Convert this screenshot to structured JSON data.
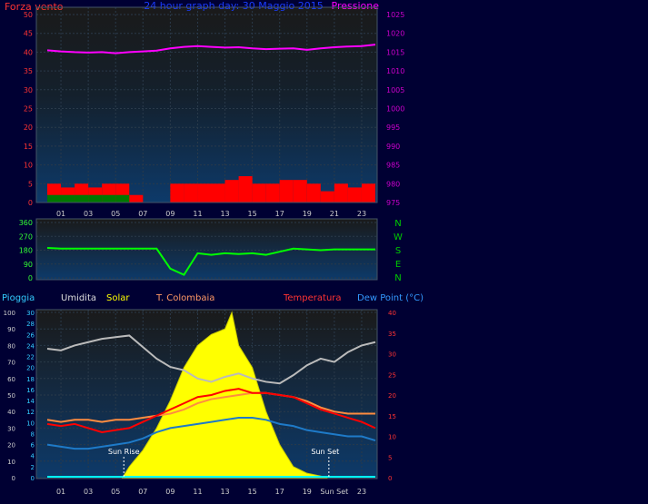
{
  "header": {
    "left_title": "Forza vento",
    "center_title": "24 hour graph day: 30 Maggio 2015",
    "right_title": "Pressione"
  },
  "legend_bottom": {
    "pioggia": "Pioggia",
    "umidita": "Umidita",
    "solar": "Solar",
    "station": "T. Colombaia",
    "temperatura": "Temperatura",
    "dewpoint": "Dew Point (°C)"
  },
  "annotations": {
    "sun_rise": "Sun Rise",
    "sun_set": "Sun Set",
    "sun_set_tick": "Sun Set"
  },
  "colors": {
    "background": "#000033",
    "plot_top": "#1a1a1a",
    "plot_bottom": "#0d3a6a",
    "wind": "#ff0000",
    "wind_avg": "#007700",
    "wind_line": "#ffffff",
    "pressure": "#ff00ff",
    "direction": "#00ff00",
    "solar": "#ffff00",
    "temperature": "#ff0000",
    "t_colombaia": "#ff8c40",
    "dewpoint": "#1e7ac8",
    "humidity": "#bbbbbb",
    "rain": "#00ffff",
    "compass": "#00cc00"
  },
  "chart_data": [
    {
      "type": "line",
      "name": "wind-pressure",
      "x_ticks": [
        "01",
        "03",
        "05",
        "07",
        "09",
        "11",
        "13",
        "15",
        "17",
        "19",
        "21",
        "23"
      ],
      "left_axis": {
        "ticks": [
          0,
          5,
          10,
          15,
          20,
          25,
          30,
          35,
          40,
          45,
          50
        ],
        "ylim": [
          0,
          50
        ]
      },
      "right_axis": {
        "ticks": [
          975,
          980,
          985,
          990,
          995,
          1000,
          1005,
          1010,
          1015,
          1020,
          1025
        ],
        "ylim": [
          975,
          1025
        ]
      },
      "series": [
        {
          "name": "Forza vento",
          "axis": "left",
          "style": "bars",
          "x": [
            0,
            1,
            2,
            3,
            4,
            5,
            6,
            7,
            8,
            9,
            10,
            11,
            12,
            13,
            14,
            15,
            16,
            17,
            18,
            19,
            20,
            21,
            22,
            23,
            24
          ],
          "values": [
            5,
            4,
            5,
            4,
            5,
            5,
            2,
            0,
            0,
            5,
            5,
            5,
            5,
            6,
            7,
            5,
            5,
            6,
            6,
            5,
            3,
            5,
            4,
            5,
            5
          ]
        },
        {
          "name": "Pressione",
          "axis": "right",
          "style": "line",
          "x": [
            0,
            1,
            2,
            3,
            4,
            5,
            6,
            7,
            8,
            9,
            10,
            11,
            12,
            13,
            14,
            15,
            16,
            17,
            18,
            19,
            20,
            21,
            22,
            23,
            24
          ],
          "values": [
            1015.5,
            1015.2,
            1015,
            1014.9,
            1015,
            1014.7,
            1015,
            1015.2,
            1015.4,
            1016,
            1016.4,
            1016.6,
            1016.4,
            1016.2,
            1016.3,
            1016,
            1015.8,
            1015.9,
            1016,
            1015.6,
            1016,
            1016.3,
            1016.5,
            1016.6,
            1017
          ]
        }
      ]
    },
    {
      "type": "line",
      "name": "wind-direction",
      "left_axis": {
        "ticks": [
          0,
          90,
          180,
          270,
          360
        ],
        "ylim": [
          0,
          360
        ]
      },
      "compass_labels": [
        "N",
        "W",
        "S",
        "E",
        "N"
      ],
      "series": [
        {
          "name": "Direzione",
          "x": [
            0,
            1,
            2,
            3,
            4,
            5,
            6,
            7,
            8,
            9,
            10,
            11,
            12,
            13,
            14,
            15,
            16,
            17,
            18,
            19,
            20,
            21,
            22,
            23,
            24
          ],
          "values": [
            195,
            190,
            190,
            190,
            190,
            190,
            190,
            190,
            190,
            60,
            20,
            160,
            150,
            160,
            155,
            160,
            150,
            170,
            190,
            185,
            180,
            185,
            185,
            185,
            185
          ]
        }
      ]
    },
    {
      "type": "area",
      "name": "solar-temp-humidity",
      "x_ticks": [
        "01",
        "03",
        "05",
        "07",
        "09",
        "11",
        "13",
        "15",
        "17",
        "19",
        "Sun Set",
        "23"
      ],
      "axis_pioggia": {
        "ticks": [
          0,
          10,
          20,
          30,
          40,
          50,
          60,
          70,
          80,
          90,
          100
        ],
        "ylim": [
          0,
          100
        ]
      },
      "axis_umidita": {
        "ticks": [
          0,
          2,
          4,
          6,
          8,
          10,
          12,
          14,
          16,
          18,
          20,
          22,
          24,
          26,
          28,
          30
        ],
        "ylim": [
          0,
          30
        ]
      },
      "axis_temp": {
        "ticks": [
          0,
          5,
          10,
          15,
          20,
          25,
          30,
          35,
          40
        ],
        "ylim": [
          0,
          40
        ]
      },
      "series": [
        {
          "name": "Solar",
          "axis": "umidita",
          "x": [
            5.5,
            6,
            7,
            8,
            9,
            10,
            11,
            12,
            13,
            13.5,
            14,
            15,
            16,
            17,
            18,
            19,
            20,
            20.5
          ],
          "values": [
            0,
            2,
            5,
            9,
            14,
            20,
            24,
            26,
            27,
            30,
            24,
            20,
            12,
            6,
            2,
            0.8,
            0.3,
            0
          ]
        },
        {
          "name": "Umidita",
          "axis": "pioggia",
          "x": [
            0,
            1,
            2,
            3,
            4,
            5,
            6,
            7,
            8,
            9,
            10,
            11,
            12,
            13,
            14,
            15,
            16,
            17,
            18,
            19,
            20,
            21,
            22,
            23,
            24
          ],
          "values": [
            78,
            77,
            80,
            82,
            84,
            85,
            86,
            79,
            72,
            67,
            65,
            60,
            58,
            61,
            63,
            60,
            58,
            57,
            62,
            68,
            72,
            70,
            76,
            80,
            82
          ]
        },
        {
          "name": "Temperatura",
          "axis": "temp",
          "x": [
            0,
            1,
            2,
            3,
            4,
            5,
            6,
            7,
            8,
            9,
            10,
            11,
            12,
            13,
            14,
            15,
            16,
            17,
            18,
            19,
            20,
            21,
            22,
            23,
            24
          ],
          "values": [
            13,
            12.5,
            13,
            12,
            11,
            11.5,
            12,
            13.5,
            15,
            16.5,
            18,
            19.5,
            20,
            21,
            21.5,
            20.5,
            20.5,
            20,
            19.5,
            18,
            16.5,
            15.5,
            14.5,
            13.5,
            12
          ]
        },
        {
          "name": "T. Colombaia",
          "axis": "temp",
          "x": [
            0,
            1,
            2,
            3,
            4,
            5,
            6,
            7,
            8,
            9,
            10,
            11,
            12,
            13,
            14,
            15,
            16,
            17,
            18,
            19,
            20,
            21,
            22,
            23,
            24
          ],
          "values": [
            14,
            13.5,
            14,
            14,
            13.5,
            14,
            14,
            14.5,
            15,
            15.5,
            16.5,
            18,
            19,
            19.5,
            20,
            20.5,
            20.5,
            20,
            19.5,
            18.5,
            17,
            16,
            15.5,
            15.5,
            15.5
          ]
        },
        {
          "name": "Dew Point",
          "axis": "temp",
          "x": [
            0,
            1,
            2,
            3,
            4,
            5,
            6,
            7,
            8,
            9,
            10,
            11,
            12,
            13,
            14,
            15,
            16,
            17,
            18,
            19,
            20,
            21,
            22,
            23,
            24
          ],
          "values": [
            8,
            7.5,
            7,
            7,
            7.5,
            8,
            8.5,
            9.5,
            11,
            12,
            12.5,
            13,
            13.5,
            14,
            14.5,
            14.5,
            14,
            13,
            12.5,
            11.5,
            11,
            10.5,
            10,
            10,
            9
          ]
        },
        {
          "name": "Pioggia",
          "axis": "pioggia",
          "x": [
            0,
            24
          ],
          "values": [
            0,
            0
          ]
        }
      ]
    }
  ]
}
